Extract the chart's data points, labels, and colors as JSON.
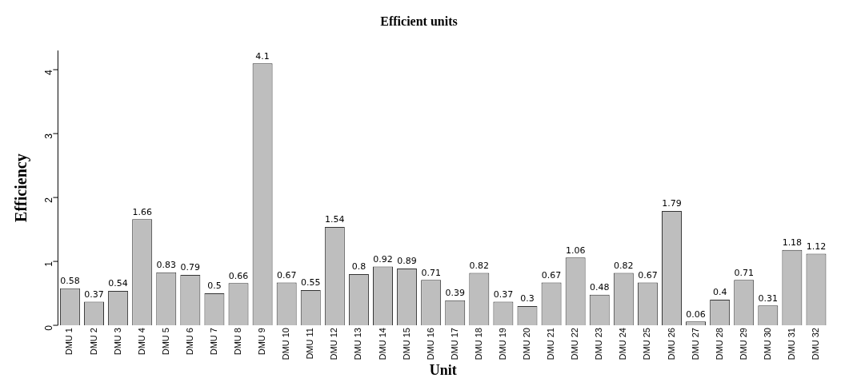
{
  "chart_data": {
    "type": "bar",
    "title": "Efficient units",
    "xlabel": "Unit",
    "ylabel": "Efficiency",
    "categories": [
      "DMU 1",
      "DMU 2",
      "DMU 3",
      "DMU 4",
      "DMU 5",
      "DMU 6",
      "DMU 7",
      "DMU 8",
      "DMU 9",
      "DMU 10",
      "DMU 11",
      "DMU 12",
      "DMU 13",
      "DMU 14",
      "DMU 15",
      "DMU 16",
      "DMU 17",
      "DMU 18",
      "DMU 19",
      "DMU 20",
      "DMU 21",
      "DMU 22",
      "DMU 23",
      "DMU 24",
      "DMU 25",
      "DMU 26",
      "DMU 27",
      "DMU 28",
      "DMU 29",
      "DMU 30",
      "DMU 31",
      "DMU 32"
    ],
    "values": [
      0.58,
      0.37,
      0.54,
      1.66,
      0.83,
      0.79,
      0.5,
      0.66,
      4.1,
      0.67,
      0.55,
      1.54,
      0.8,
      0.92,
      0.89,
      0.71,
      0.39,
      0.82,
      0.37,
      0.3,
      0.67,
      1.06,
      0.48,
      0.82,
      0.67,
      1.79,
      0.06,
      0.4,
      0.71,
      0.31,
      1.18,
      1.12
    ],
    "color": "#bebebe",
    "ylim": [
      0,
      4.3
    ],
    "yticks": [
      0,
      1,
      2,
      3,
      4
    ],
    "grid": false,
    "legend": false,
    "data_labels": true
  }
}
